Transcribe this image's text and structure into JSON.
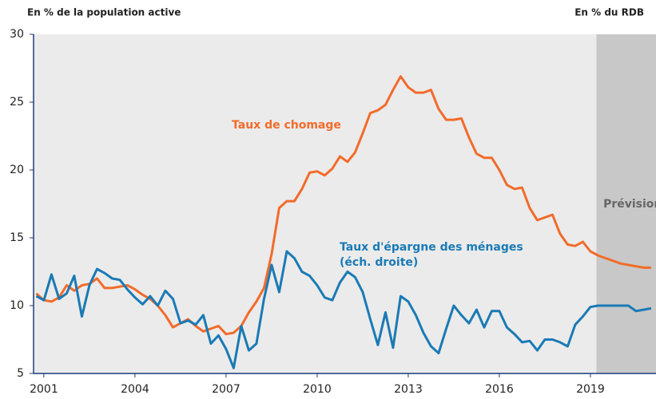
{
  "chart_data": {
    "type": "line",
    "y_axis_label": "En % de la population active",
    "y2_axis_label": "En % du RDB",
    "xlim": [
      2000.66,
      2021.16
    ],
    "xticks": [
      2001,
      2004,
      2007,
      2010,
      2013,
      2016,
      2019
    ],
    "ylim": [
      5,
      30
    ],
    "yticks": [
      5,
      10,
      15,
      20,
      25,
      30
    ],
    "grid": false,
    "shaded_region": {
      "from": 2019.2,
      "to": 2021.16,
      "label": "Prévision",
      "color": "#c8c8c8"
    },
    "x": [
      2000.75,
      2001,
      2001.25,
      2001.5,
      2001.75,
      2002,
      2002.25,
      2002.5,
      2002.75,
      2003,
      2003.25,
      2003.5,
      2003.75,
      2004,
      2004.25,
      2004.5,
      2004.75,
      2005,
      2005.25,
      2005.5,
      2005.75,
      2006,
      2006.25,
      2006.5,
      2006.75,
      2007,
      2007.25,
      2007.5,
      2007.75,
      2008,
      2008.25,
      2008.5,
      2008.75,
      2009,
      2009.25,
      2009.5,
      2009.75,
      2010,
      2010.25,
      2010.5,
      2010.75,
      2011,
      2011.25,
      2011.5,
      2011.75,
      2012,
      2012.25,
      2012.5,
      2012.75,
      2013,
      2013.25,
      2013.5,
      2013.75,
      2014,
      2014.25,
      2014.5,
      2014.75,
      2015,
      2015.25,
      2015.5,
      2015.75,
      2016,
      2016.25,
      2016.5,
      2016.75,
      2017,
      2017.25,
      2017.5,
      2017.75,
      2018,
      2018.25,
      2018.5,
      2018.75,
      2019,
      2019.25,
      2019.5,
      2019.75,
      2020,
      2020.25,
      2020.5,
      2020.75,
      2021
    ],
    "series": [
      {
        "name": "Taux de chomage",
        "color": "#f26b2a",
        "values": [
          10.9,
          10.4,
          10.3,
          10.6,
          11.5,
          11.1,
          11.5,
          11.6,
          12.0,
          11.3,
          11.3,
          11.4,
          11.5,
          11.2,
          10.8,
          10.5,
          10.0,
          9.3,
          8.4,
          8.7,
          9.0,
          8.5,
          8.1,
          8.3,
          8.5,
          7.9,
          8.0,
          8.5,
          9.5,
          10.3,
          11.3,
          13.8,
          17.2,
          17.7,
          17.7,
          18.6,
          19.8,
          19.9,
          19.6,
          20.1,
          21.0,
          20.6,
          21.3,
          22.7,
          24.2,
          24.4,
          24.8,
          25.9,
          26.9,
          26.1,
          25.7,
          25.7,
          25.9,
          24.5,
          23.7,
          23.7,
          23.8,
          22.4,
          21.2,
          20.9,
          20.9,
          20.0,
          18.9,
          18.6,
          18.7,
          17.2,
          16.3,
          16.5,
          16.7,
          15.3,
          14.5,
          14.4,
          14.7,
          14.0,
          13.7,
          13.5,
          13.3,
          13.1,
          13.0,
          12.9,
          12.8,
          12.8
        ]
      },
      {
        "name": "Taux d'épargne des ménages",
        "note": "(éch. droite)",
        "color": "#1a7ab5",
        "values": [
          10.7,
          10.4,
          12.3,
          10.5,
          10.9,
          12.2,
          9.2,
          11.5,
          12.7,
          12.4,
          12.0,
          11.9,
          11.2,
          10.6,
          10.1,
          10.7,
          10.0,
          11.1,
          10.5,
          8.7,
          8.9,
          8.6,
          9.3,
          7.2,
          7.8,
          6.8,
          5.4,
          8.5,
          6.7,
          7.2,
          10.5,
          13.0,
          11.0,
          14.0,
          13.5,
          12.5,
          12.2,
          11.5,
          10.6,
          10.4,
          11.7,
          12.5,
          12.1,
          11.0,
          9.0,
          7.1,
          9.5,
          6.9,
          10.7,
          10.3,
          9.3,
          8.0,
          7.0,
          6.5,
          8.3,
          10.0,
          9.3,
          8.7,
          9.7,
          8.4,
          9.6,
          9.6,
          8.4,
          7.9,
          7.3,
          7.4,
          6.7,
          7.5,
          7.5,
          7.3,
          7.0,
          8.6,
          9.2,
          9.9,
          10.0,
          10.0,
          10.0,
          10.0,
          10.0,
          9.6,
          9.7,
          9.8
        ]
      }
    ]
  }
}
